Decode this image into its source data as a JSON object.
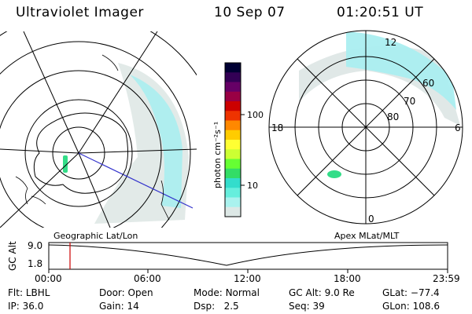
{
  "header": {
    "title": "Ultraviolet Imager",
    "date": "10 Sep 07",
    "time": "01:20:51 UT"
  },
  "colorbar": {
    "unit_label": "photon cm⁻²s⁻¹",
    "ticks": [
      "100",
      "10"
    ],
    "colors": [
      "#000033",
      "#330055",
      "#660066",
      "#990044",
      "#cc0000",
      "#ee3300",
      "#ff8800",
      "#ffcc00",
      "#ffff33",
      "#ccff33",
      "#66ff33",
      "#33dd66",
      "#33ddcc",
      "#66eedd",
      "#aaf2ee",
      "#dde8e6"
    ]
  },
  "left_panel": {
    "label": "Geographic Lat/Lon"
  },
  "right_panel": {
    "label": "Apex MLat/MLT",
    "mlt_labels": {
      "top": "12",
      "left": "18",
      "right": "6",
      "bottom": "0"
    },
    "lat_labels": [
      "60",
      "70",
      "80"
    ]
  },
  "timeline": {
    "ylabel": "GC Alt",
    "yticks": [
      "9.0",
      "1.8"
    ],
    "xticks": [
      "00:00",
      "06:00",
      "12:00",
      "18:00",
      "23:59"
    ],
    "current_marker_color": "#cc0000"
  },
  "info": {
    "filter_label": "Flt:",
    "filter_value": "LBHL",
    "ip_label": "IP:",
    "ip_value": "36.0",
    "door_label": "Door:",
    "door_value": "Open",
    "gain_label": "Gain:",
    "gain_value": "14",
    "mode_label": "Mode:",
    "mode_value": "Normal",
    "dsp_label": "Dsp:",
    "dsp_value": "2.5",
    "gcalt_label": "GC Alt:",
    "gcalt_value": "9.0 Re",
    "seq_label": "Seq:",
    "seq_value": "39",
    "glat_label": "GLat:",
    "glat_value": "−77.4",
    "glon_label": "GLon:",
    "glon_value": "108.6"
  }
}
